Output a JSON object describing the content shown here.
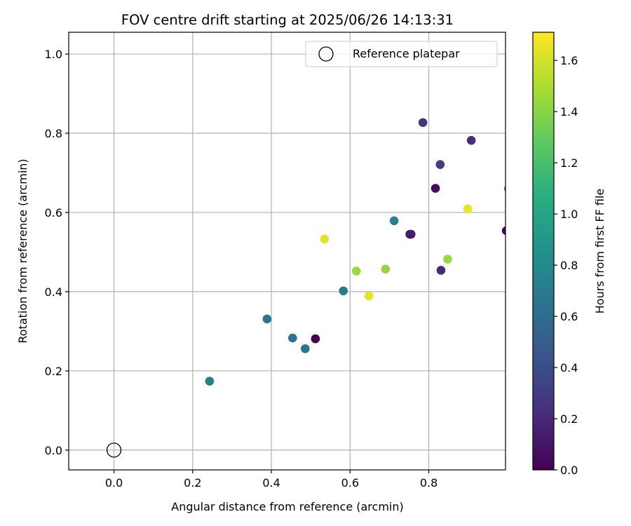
{
  "chart_data": {
    "type": "scatter",
    "title": "FOV centre drift starting at 2025/06/26 14:13:31",
    "xlabel": "Angular distance from reference (arcmin)",
    "ylabel": "Rotation from reference (arcmin)",
    "xlim": [
      -0.115,
      0.995
    ],
    "ylim": [
      -0.05,
      1.055
    ],
    "xticks": [
      0.0,
      0.2,
      0.4,
      0.6,
      0.8
    ],
    "xtick_labels": [
      "0.0",
      "0.2",
      "0.4",
      "0.6",
      "0.8"
    ],
    "yticks": [
      0.0,
      0.2,
      0.4,
      0.6,
      0.8,
      1.0
    ],
    "ytick_labels": [
      "0.0",
      "0.2",
      "0.4",
      "0.6",
      "0.8",
      "1.0"
    ],
    "grid": true,
    "legend": {
      "placement": "top-right",
      "entries": [
        "Reference platepar"
      ]
    },
    "reference_point": {
      "name": "Reference platepar",
      "x": 0.0,
      "y": 0.0
    },
    "colorbar": {
      "label": "Hours from first FF file",
      "colormap": "viridis",
      "range": [
        0.0,
        1.71
      ],
      "ticks": [
        0.0,
        0.2,
        0.4,
        0.6,
        0.8,
        1.0,
        1.2,
        1.4,
        1.6
      ],
      "tick_labels": [
        "0.0",
        "0.2",
        "0.4",
        "0.6",
        "0.8",
        "1.0",
        "1.2",
        "1.4",
        "1.6"
      ]
    },
    "points": [
      {
        "x": 0.243,
        "y": 0.174,
        "hours": 0.72
      },
      {
        "x": 0.389,
        "y": 0.331,
        "hours": 0.68
      },
      {
        "x": 0.454,
        "y": 0.283,
        "hours": 0.66
      },
      {
        "x": 0.486,
        "y": 0.256,
        "hours": 0.66
      },
      {
        "x": 0.512,
        "y": 0.281,
        "hours": 0.0
      },
      {
        "x": 0.535,
        "y": 0.533,
        "hours": 1.64
      },
      {
        "x": 0.583,
        "y": 0.402,
        "hours": 0.7
      },
      {
        "x": 0.616,
        "y": 0.452,
        "hours": 1.45
      },
      {
        "x": 0.648,
        "y": 0.389,
        "hours": 1.65
      },
      {
        "x": 0.69,
        "y": 0.457,
        "hours": 1.43
      },
      {
        "x": 0.712,
        "y": 0.579,
        "hours": 0.74
      },
      {
        "x": 0.752,
        "y": 0.545,
        "hours": 0.1
      },
      {
        "x": 0.755,
        "y": 0.545,
        "hours": 0.12
      },
      {
        "x": 0.785,
        "y": 0.827,
        "hours": 0.28
      },
      {
        "x": 0.817,
        "y": 0.661,
        "hours": 0.06
      },
      {
        "x": 0.829,
        "y": 0.721,
        "hours": 0.3
      },
      {
        "x": 0.831,
        "y": 0.454,
        "hours": 0.2
      },
      {
        "x": 0.848,
        "y": 0.482,
        "hours": 1.45
      },
      {
        "x": 0.899,
        "y": 0.609,
        "hours": 1.66
      },
      {
        "x": 0.908,
        "y": 0.782,
        "hours": 0.22
      },
      {
        "x": 0.997,
        "y": 0.554,
        "hours": 0.05
      },
      {
        "x": 1.003,
        "y": 0.66,
        "hours": 0.35
      }
    ]
  }
}
